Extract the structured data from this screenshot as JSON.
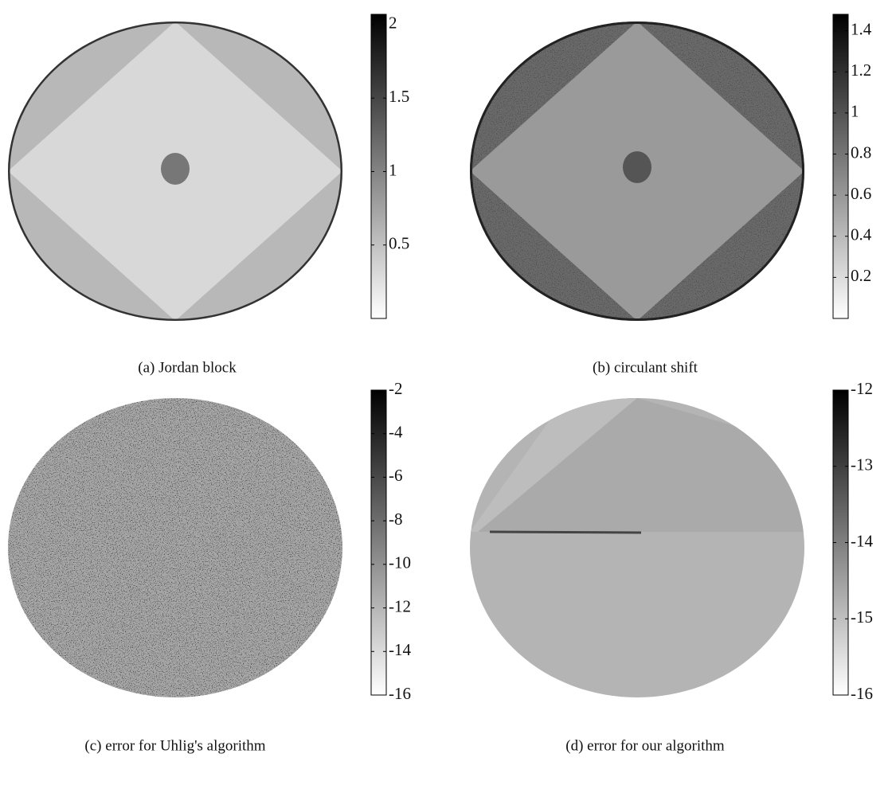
{
  "chart_data": [
    {
      "type": "heatmap",
      "caption": "(a) Jordan block",
      "ylim": [
        0,
        2.07
      ],
      "yticks": [
        0.5,
        1,
        1.5,
        2
      ]
    },
    {
      "type": "heatmap",
      "caption": "(b) circulant shift",
      "ylim": [
        0,
        1.48
      ],
      "yticks": [
        0.2,
        0.4,
        0.6,
        0.8,
        1,
        1.2,
        1.4
      ]
    },
    {
      "type": "heatmap",
      "caption": "(c) error for Uhlig's algorithm",
      "ylim": [
        -16,
        -2
      ],
      "yticks": [
        -16,
        -14,
        -12,
        -10,
        -8,
        -6,
        -4,
        -2
      ]
    },
    {
      "type": "heatmap",
      "caption": "(d) error for our algorithm",
      "ylim": [
        -16,
        -12
      ],
      "yticks": [
        -16,
        -15,
        -14,
        -13,
        -12
      ]
    }
  ]
}
